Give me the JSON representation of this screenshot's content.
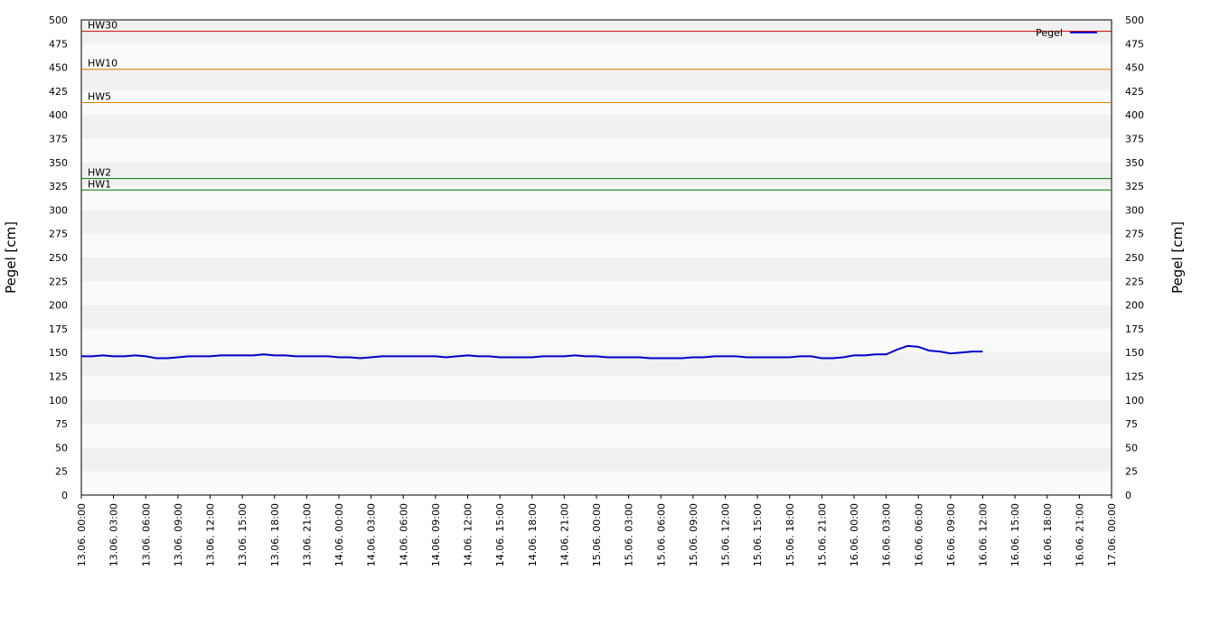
{
  "chart_data": {
    "type": "line",
    "y_label": "Pegel [cm]",
    "y2_label": "Pegel [cm]",
    "legend": "upper right",
    "grid": true,
    "ylim": [
      0,
      500
    ],
    "yticks": [
      0,
      25,
      50,
      75,
      100,
      125,
      150,
      175,
      200,
      225,
      250,
      275,
      300,
      325,
      350,
      375,
      400,
      425,
      450,
      475,
      500
    ],
    "y2lim": [
      0,
      500
    ],
    "y2ticks": [
      0,
      25,
      50,
      75,
      100,
      125,
      150,
      175,
      200,
      225,
      250,
      275,
      300,
      325,
      350,
      375,
      400,
      425,
      450,
      475,
      500
    ],
    "xlim": [
      "13.06. 00:00",
      "17.06. 00:00"
    ],
    "xticks": [
      "13.06. 00:00",
      "13.06. 03:00",
      "13.06. 06:00",
      "13.06. 09:00",
      "13.06. 12:00",
      "13.06. 15:00",
      "13.06. 18:00",
      "13.06. 21:00",
      "14.06. 00:00",
      "14.06. 03:00",
      "14.06. 06:00",
      "14.06. 09:00",
      "14.06. 12:00",
      "14.06. 15:00",
      "14.06. 18:00",
      "14.06. 21:00",
      "15.06. 00:00",
      "15.06. 03:00",
      "15.06. 06:00",
      "15.06. 09:00",
      "15.06. 12:00",
      "15.06. 15:00",
      "15.06. 18:00",
      "15.06. 21:00",
      "16.06. 00:00",
      "16.06. 03:00",
      "16.06. 06:00",
      "16.06. 09:00",
      "16.06. 12:00",
      "16.06. 15:00",
      "16.06. 18:00",
      "16.06. 21:00",
      "17.06. 00:00"
    ],
    "thresholds": [
      {
        "label": "HW30",
        "value": 488,
        "color": "#cc0000"
      },
      {
        "label": "HW10",
        "value": 448,
        "color": "#e08000"
      },
      {
        "label": "HW5",
        "value": 413,
        "color": "#e08000"
      },
      {
        "label": "HW2",
        "value": 333,
        "color": "#007700"
      },
      {
        "label": "HW1",
        "value": 321,
        "color": "#007700"
      }
    ],
    "x": [
      "13.06. 00:00",
      "13.06. 01:00",
      "13.06. 02:00",
      "13.06. 03:00",
      "13.06. 04:00",
      "13.06. 05:00",
      "13.06. 06:00",
      "13.06. 07:00",
      "13.06. 08:00",
      "13.06. 09:00",
      "13.06. 10:00",
      "13.06. 11:00",
      "13.06. 12:00",
      "13.06. 13:00",
      "13.06. 14:00",
      "13.06. 15:00",
      "13.06. 16:00",
      "13.06. 17:00",
      "13.06. 18:00",
      "13.06. 19:00",
      "13.06. 20:00",
      "13.06. 21:00",
      "13.06. 22:00",
      "13.06. 23:00",
      "14.06. 00:00",
      "14.06. 01:00",
      "14.06. 02:00",
      "14.06. 03:00",
      "14.06. 04:00",
      "14.06. 05:00",
      "14.06. 06:00",
      "14.06. 07:00",
      "14.06. 08:00",
      "14.06. 09:00",
      "14.06. 10:00",
      "14.06. 11:00",
      "14.06. 12:00",
      "14.06. 13:00",
      "14.06. 14:00",
      "14.06. 15:00",
      "14.06. 16:00",
      "14.06. 17:00",
      "14.06. 18:00",
      "14.06. 19:00",
      "14.06. 20:00",
      "14.06. 21:00",
      "14.06. 22:00",
      "14.06. 23:00",
      "15.06. 00:00",
      "15.06. 01:00",
      "15.06. 02:00",
      "15.06. 03:00",
      "15.06. 04:00",
      "15.06. 05:00",
      "15.06. 06:00",
      "15.06. 07:00",
      "15.06. 08:00",
      "15.06. 09:00",
      "15.06. 10:00",
      "15.06. 11:00",
      "15.06. 12:00",
      "15.06. 13:00",
      "15.06. 14:00",
      "15.06. 15:00",
      "15.06. 16:00",
      "15.06. 17:00",
      "15.06. 18:00",
      "15.06. 19:00",
      "15.06. 20:00",
      "15.06. 21:00",
      "15.06. 22:00",
      "15.06. 23:00",
      "16.06. 00:00",
      "16.06. 01:00",
      "16.06. 02:00",
      "16.06. 03:00",
      "16.06. 04:00",
      "16.06. 05:00",
      "16.06. 06:00",
      "16.06. 07:00",
      "16.06. 08:00",
      "16.06. 09:00",
      "16.06. 10:00",
      "16.06. 11:00",
      "16.06. 12:00"
    ],
    "series": [
      {
        "name": "Pegel",
        "color": "#0000cc",
        "values": [
          146,
          146,
          147,
          146,
          146,
          147,
          146,
          144,
          144,
          145,
          146,
          146,
          146,
          147,
          147,
          147,
          147,
          148,
          147,
          147,
          146,
          146,
          146,
          146,
          145,
          145,
          144,
          145,
          146,
          146,
          146,
          146,
          146,
          146,
          145,
          146,
          147,
          146,
          146,
          145,
          145,
          145,
          145,
          146,
          146,
          146,
          147,
          146,
          146,
          145,
          145,
          145,
          145,
          144,
          144,
          144,
          144,
          145,
          145,
          146,
          146,
          146,
          145,
          145,
          145,
          145,
          145,
          146,
          146,
          144,
          144,
          145,
          147,
          147,
          148,
          148,
          153,
          157,
          156,
          152,
          151,
          149,
          150,
          151,
          151
        ]
      }
    ]
  }
}
